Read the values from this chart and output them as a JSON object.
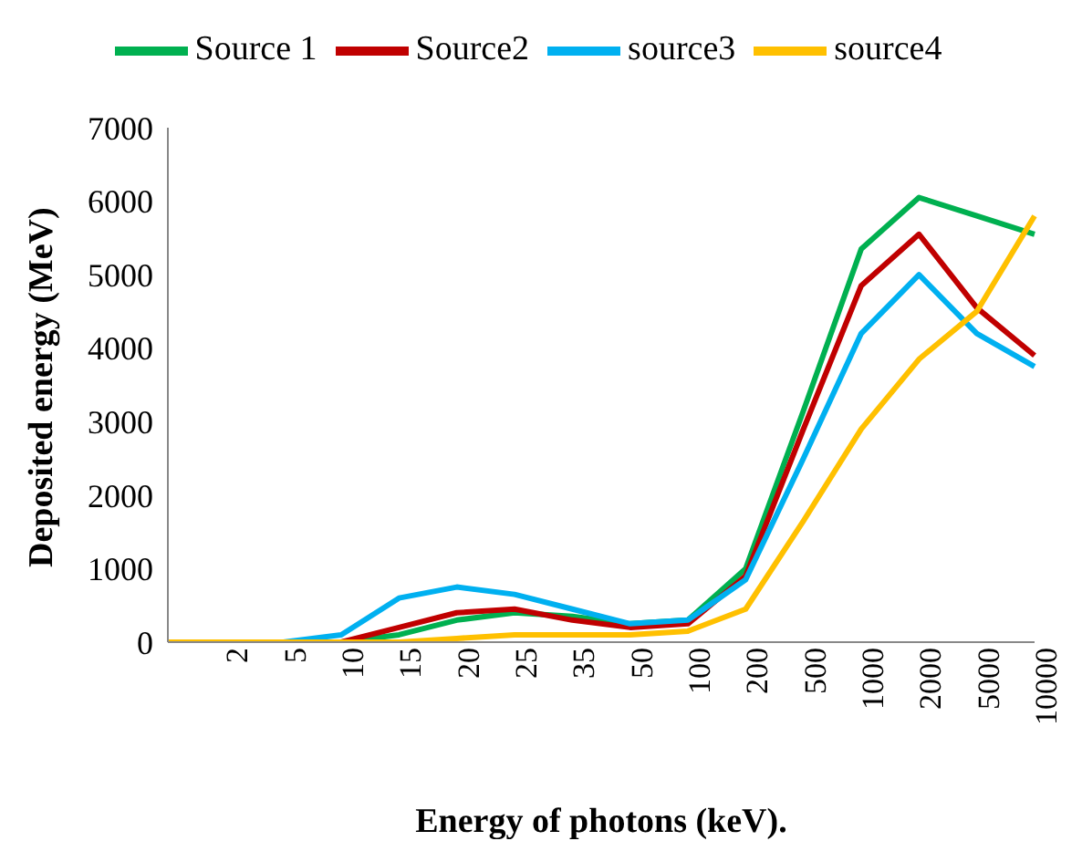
{
  "chart_data": {
    "type": "line",
    "xlabel": "Energy of photons (keV).",
    "ylabel": "Deposited energy (MeV)",
    "categories": [
      null,
      "2",
      "5",
      "10",
      "15",
      "20",
      "25",
      "35",
      "50",
      "100",
      "200",
      "500",
      "1000",
      "2000",
      "5000",
      "10000"
    ],
    "series": [
      {
        "name": "Source 1",
        "color": "#00b050",
        "values": [
          null,
          null,
          0,
          0,
          100,
          300,
          400,
          350,
          250,
          300,
          1000,
          3150,
          5350,
          6050,
          5800,
          5550
        ]
      },
      {
        "name": "Source2",
        "color": "#c00000",
        "values": [
          null,
          null,
          0,
          0,
          200,
          400,
          450,
          300,
          200,
          250,
          900,
          2900,
          4850,
          5550,
          4550,
          3900
        ]
      },
      {
        "name": "source3",
        "color": "#00b0f0",
        "values": [
          0,
          0,
          0,
          100,
          600,
          750,
          650,
          450,
          250,
          300,
          850,
          2500,
          4200,
          5000,
          4200,
          3750
        ]
      },
      {
        "name": "source4",
        "color": "#ffc000",
        "values": [
          0,
          0,
          0,
          0,
          0,
          50,
          100,
          100,
          100,
          150,
          450,
          1650,
          2900,
          3850,
          4500,
          5800
        ]
      }
    ],
    "ylim": [
      0,
      7000
    ],
    "yticks": [
      0,
      1000,
      2000,
      3000,
      4000,
      5000,
      6000,
      7000
    ],
    "grid": false,
    "legend": "top",
    "marker": "none",
    "line_style": "solid"
  }
}
